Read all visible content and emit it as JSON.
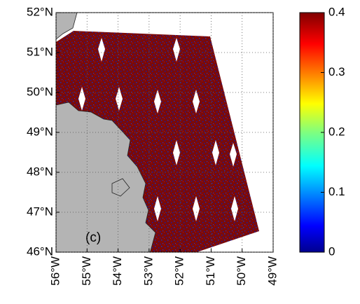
{
  "map": {
    "label": "(c)",
    "lonlim": [
      -56,
      -49
    ],
    "latlim": [
      46,
      52
    ],
    "lat_ticks": [
      {
        "value": 52,
        "label": "52°N"
      },
      {
        "value": 51,
        "label": "51°N"
      },
      {
        "value": 50,
        "label": "50°N"
      },
      {
        "value": 49,
        "label": "49°N"
      },
      {
        "value": 48,
        "label": "48°N"
      },
      {
        "value": 47,
        "label": "47°N"
      },
      {
        "value": 46,
        "label": "46°N"
      }
    ],
    "lon_ticks": [
      {
        "value": -56,
        "label": "56°W"
      },
      {
        "value": -55,
        "label": "55°W"
      },
      {
        "value": -54,
        "label": "54°W"
      },
      {
        "value": -53,
        "label": "53°W"
      },
      {
        "value": -52,
        "label": "52°W"
      },
      {
        "value": -51,
        "label": "51°W"
      },
      {
        "value": -50,
        "label": "50°W"
      },
      {
        "value": -49,
        "label": "49°W"
      }
    ]
  },
  "colorbar": {
    "lim": [
      0,
      0.4
    ],
    "ticks": [
      0,
      0.1,
      0.2,
      0.3,
      0.4
    ]
  }
}
